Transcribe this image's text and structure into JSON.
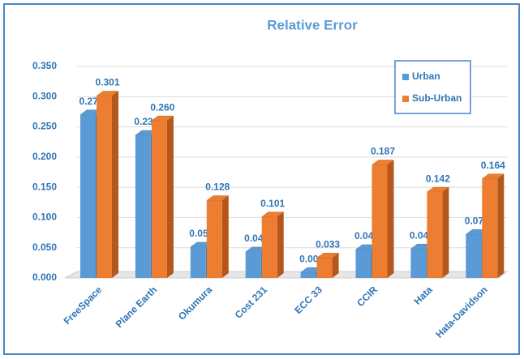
{
  "chart_data": {
    "type": "bar3d",
    "title": "Relative Error",
    "categories": [
      "FreeSpace",
      "Plane Earth",
      "Okumura",
      "Cost 231",
      "ECC 33",
      "CCIR",
      "Hata",
      "Hata-Davidson"
    ],
    "series": [
      {
        "name": "Urban",
        "color": "#5b9bd5",
        "side_color": "#3b78b4",
        "values": [
          0.27,
          0.236,
          0.051,
          0.043,
          0.009,
          0.047,
          0.048,
          0.072
        ],
        "value_labels": [
          "0.270",
          "0.236",
          "0.051",
          "0.043",
          "0.009",
          "0.047",
          "0.048",
          "0.072"
        ]
      },
      {
        "name": "Sub-Urban",
        "color": "#ed7d31",
        "side_color": "#b5561a",
        "values": [
          0.301,
          0.26,
          0.128,
          0.101,
          0.033,
          0.187,
          0.142,
          0.164
        ],
        "value_labels": [
          "0.301",
          "0.260",
          "0.128",
          "0.101",
          "0.033",
          "0.187",
          "0.142",
          "0.164"
        ]
      }
    ],
    "ylim": [
      0,
      0.35
    ],
    "yticks": [
      {
        "value": 0,
        "label": "0.000"
      },
      {
        "value": 0.05,
        "label": "0.050"
      },
      {
        "value": 0.1,
        "label": "0.100"
      },
      {
        "value": 0.15,
        "label": "0.150"
      },
      {
        "value": 0.2,
        "label": "0.200"
      },
      {
        "value": 0.25,
        "label": "0.250"
      },
      {
        "value": 0.3,
        "label": "0.300"
      },
      {
        "value": 0.35,
        "label": "0.350"
      }
    ],
    "grid": true,
    "legend": "upper right"
  }
}
